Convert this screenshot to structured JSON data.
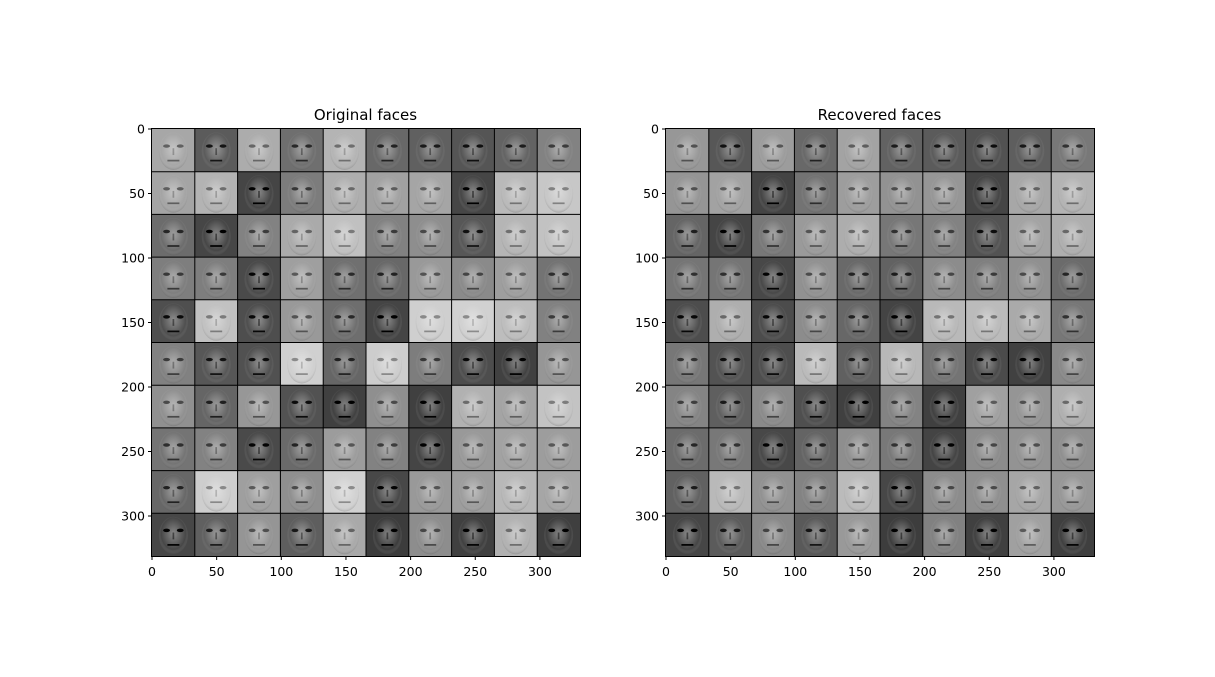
{
  "figure": {
    "panels": [
      {
        "id": "original",
        "title": "Original faces",
        "xticks": [
          "0",
          "50",
          "100",
          "150",
          "200",
          "250",
          "300"
        ],
        "yticks": [
          "0",
          "50",
          "100",
          "150",
          "200",
          "250",
          "300"
        ],
        "x_tick_values": [
          0,
          50,
          100,
          150,
          200,
          250,
          300
        ],
        "y_tick_values": [
          0,
          50,
          100,
          150,
          200,
          250,
          300
        ],
        "xlim": [
          0,
          331
        ],
        "ylim": [
          331,
          0
        ],
        "grid_rows": 10,
        "grid_cols": 10,
        "tile_size_px": 32,
        "separator_color": "#000000"
      },
      {
        "id": "recovered",
        "title": "Recovered faces",
        "xticks": [
          "0",
          "50",
          "100",
          "150",
          "200",
          "250",
          "300"
        ],
        "yticks": [
          "0",
          "50",
          "100",
          "150",
          "200",
          "250",
          "300"
        ],
        "x_tick_values": [
          0,
          50,
          100,
          150,
          200,
          250,
          300
        ],
        "y_tick_values": [
          0,
          50,
          100,
          150,
          200,
          250,
          300
        ],
        "xlim": [
          0,
          331
        ],
        "ylim": [
          331,
          0
        ],
        "grid_rows": 10,
        "grid_cols": 10,
        "tile_size_px": 32,
        "separator_color": "#000000"
      }
    ]
  }
}
